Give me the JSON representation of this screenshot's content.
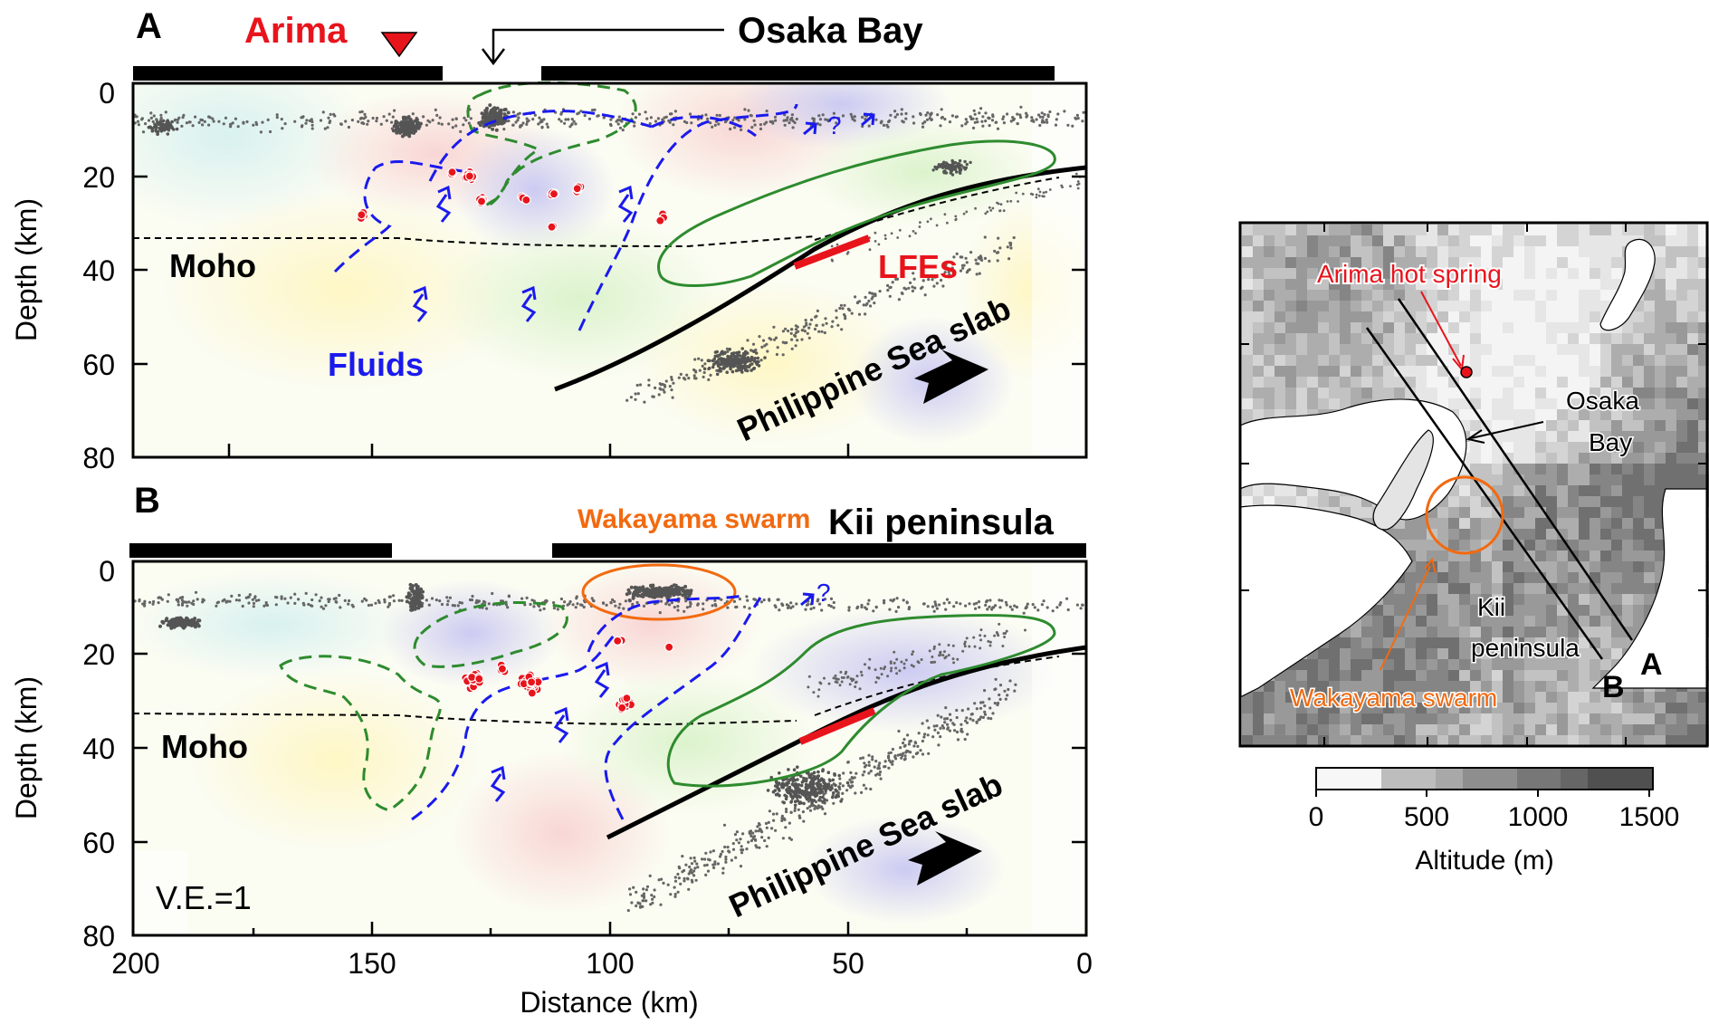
{
  "panel_a": {
    "letter": "A",
    "labels": {
      "arima": "Arima",
      "osaka_bay": "Osaka Bay",
      "moho": "Moho",
      "fluids": "Fluids",
      "lfes": "LFEs",
      "slab": "Philippine Sea slab",
      "question": "?"
    },
    "y_ticks": [
      "0",
      "20",
      "40",
      "60",
      "80"
    ],
    "ylabel": "Depth (km)"
  },
  "panel_b": {
    "letter": "B",
    "labels": {
      "wakayama": "Wakayama swarm",
      "kii": "Kii peninsula",
      "moho": "Moho",
      "slab": "Philippine Sea slab",
      "ve": "V.E.=1",
      "question": "?"
    },
    "y_ticks": [
      "0",
      "20",
      "40",
      "60",
      "80"
    ],
    "ylabel": "Depth (km)",
    "x_ticks": [
      "200",
      "150",
      "100",
      "50",
      "0"
    ],
    "xlabel": "Distance (km)"
  },
  "map": {
    "labels": {
      "arima": "Arima hot spring",
      "osaka": "Osaka",
      "bay": "Bay",
      "kii": "Kii",
      "peninsula": "peninsula",
      "wakayama": "Wakayama swarm",
      "line_a": "A",
      "line_b": "B"
    },
    "colorbar": {
      "ticks": [
        "0",
        "500",
        "1000",
        "1500"
      ],
      "label": "Altitude (m)"
    }
  },
  "colors": {
    "red": "#e8141c",
    "blue": "#1a1aee",
    "green": "#2e8b2e",
    "orange": "#f26a10",
    "dots": "#666666"
  }
}
